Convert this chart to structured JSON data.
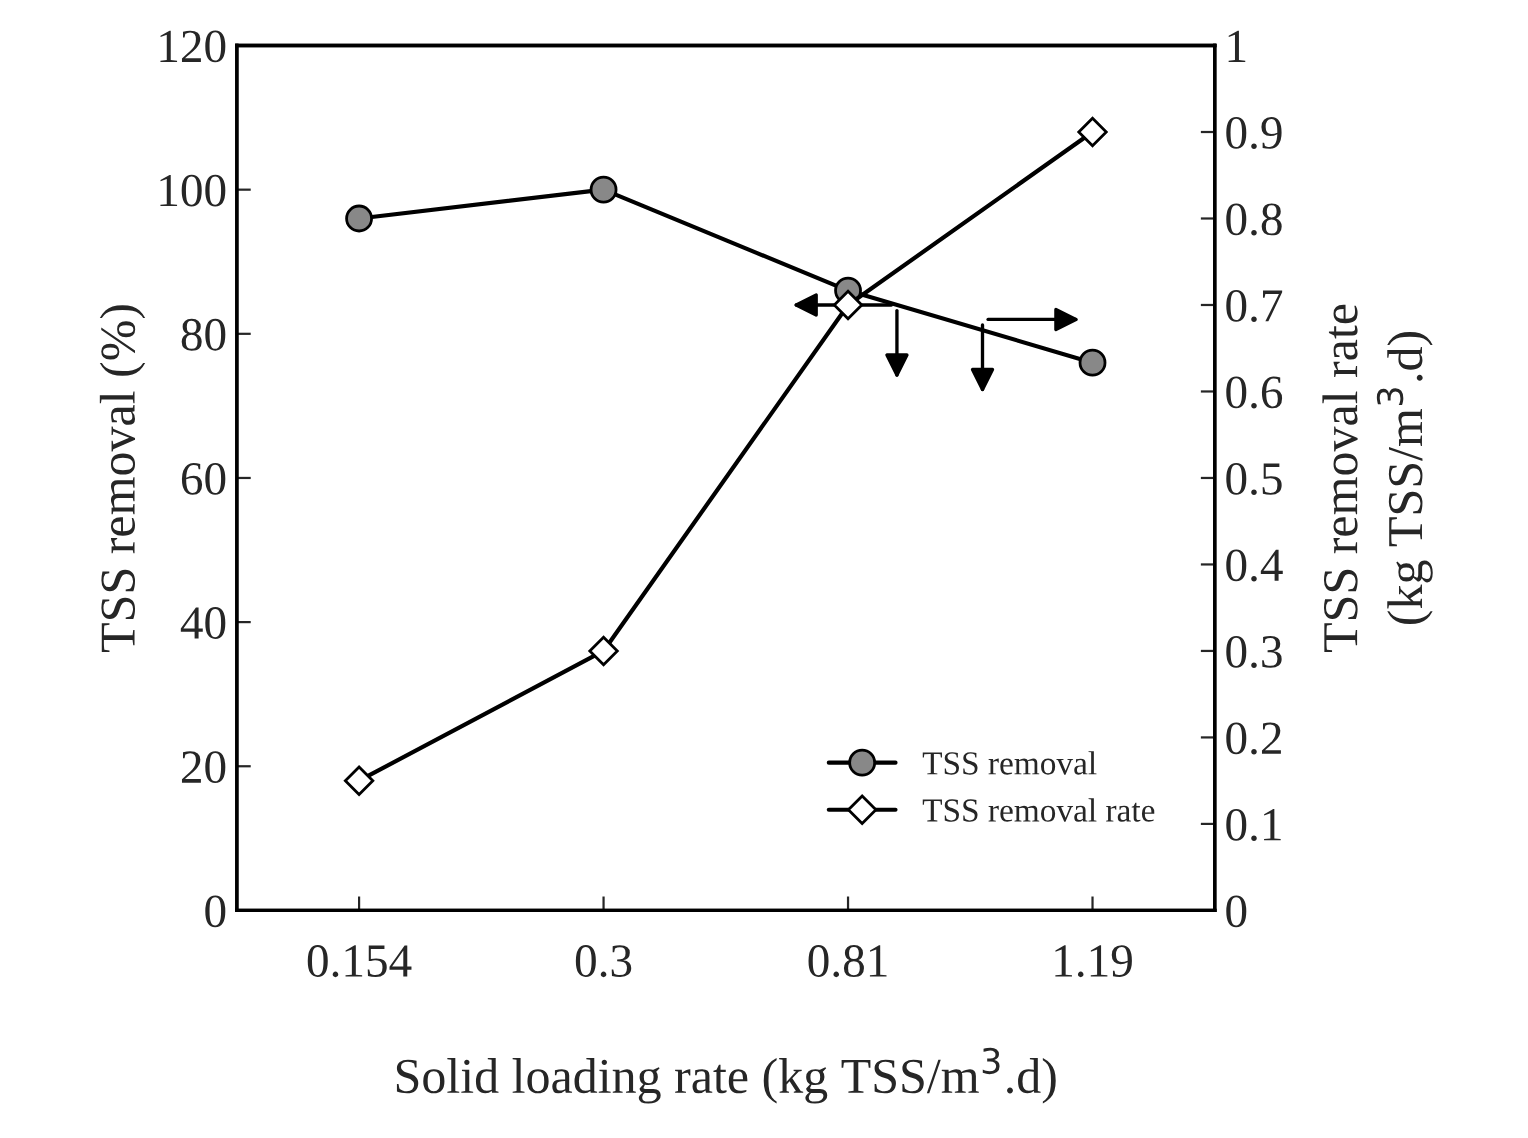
{
  "chart_data": {
    "type": "line",
    "categories": [
      "0.154",
      "0.3",
      "0.81",
      "1.19"
    ],
    "xlabel": "Solid loading rate (kg TSS/m$^{3}$.d)",
    "ylabel": "TSS removal (%)",
    "y2label": "TSS removal rate\n(kg TSS/m$^{3}$.d)",
    "series": [
      {
        "name": "TSS removal",
        "color": "#000000",
        "values": [
          96,
          100,
          86,
          76
        ],
        "marker": "circle"
      },
      {
        "name": "TSS removal rate",
        "color": "#000000",
        "values": [
          0.15,
          0.3,
          0.7,
          0.9
        ],
        "marker": "diamond",
        "axis": "y2"
      }
    ],
    "ylim": [
      0,
      120
    ],
    "yticks": [
      0,
      20,
      40,
      60,
      80,
      100,
      120
    ],
    "y2lim": [
      0,
      1
    ],
    "y2ticks": [
      0,
      0.1,
      0.2,
      0.3,
      0.4,
      0.5,
      0.6,
      0.7,
      0.8,
      0.9,
      1
    ],
    "grid": false,
    "legend": "bottom right",
    "line_style": "solid"
  }
}
